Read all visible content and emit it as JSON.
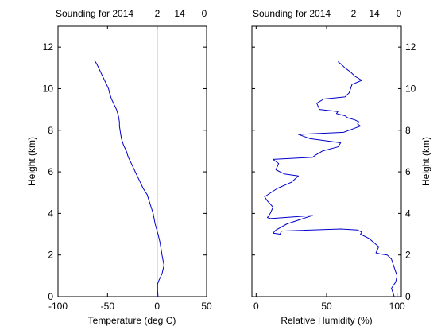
{
  "chart_data": [
    {
      "type": "line",
      "header": [
        "Sounding for 2014",
        "2",
        "14",
        "0"
      ],
      "xlabel": "Temperature (deg C)",
      "ylabel": "Height (km)",
      "xlim": [
        -100,
        50
      ],
      "ylim": [
        0,
        13
      ],
      "xticks": [
        -100,
        -50,
        0,
        50
      ],
      "yticks": [
        0,
        2,
        4,
        6,
        8,
        10,
        12
      ],
      "ytick_side": "left",
      "line_color": "#0000cc",
      "reference_line": {
        "x": 0,
        "color": "#cc0000"
      },
      "series": [
        {
          "x": [
            1,
            0.5,
            0.5,
            2,
            5,
            7,
            5,
            3,
            1,
            -2,
            -4,
            -6,
            -8,
            -10,
            -14,
            -17,
            -20,
            -23,
            -26,
            -29,
            -31,
            -34,
            -36,
            -37,
            -38,
            -38,
            -39,
            -41,
            -44,
            -46,
            -48,
            -49,
            -51,
            -53,
            -55,
            -57,
            -59,
            -61,
            -63
          ],
          "y": [
            0.0,
            0.3,
            0.6,
            0.8,
            1.1,
            1.5,
            2.0,
            2.6,
            3.0,
            3.5,
            4.0,
            4.3,
            4.6,
            4.9,
            5.2,
            5.5,
            5.8,
            6.1,
            6.4,
            6.7,
            7.0,
            7.3,
            7.6,
            7.9,
            8.2,
            8.4,
            8.7,
            9.0,
            9.3,
            9.5,
            9.8,
            10.0,
            10.2,
            10.4,
            10.6,
            10.8,
            11.0,
            11.2,
            11.35
          ]
        }
      ]
    },
    {
      "type": "line",
      "header": [
        "Sounding for 2014",
        "2",
        "14",
        "0"
      ],
      "xlabel": "Relative Humidity (%)",
      "ylabel": "Height (km)",
      "xlim": [
        -3,
        103
      ],
      "ylim": [
        0,
        13
      ],
      "xticks": [
        0,
        50,
        100
      ],
      "yticks": [
        0,
        2,
        4,
        6,
        8,
        10,
        12
      ],
      "ytick_side": "right",
      "line_color": "#0000cc",
      "series": [
        {
          "x": [
            98,
            97,
            96,
            99,
            100,
            98,
            96,
            93,
            88,
            85,
            87,
            80,
            74,
            75,
            72,
            60,
            18,
            17,
            12,
            14,
            22,
            40,
            10,
            8,
            10,
            12,
            8,
            6,
            15,
            25,
            30,
            20,
            14,
            16,
            12,
            40,
            42,
            47,
            58,
            60,
            38,
            30,
            62,
            66,
            70,
            74,
            72,
            73,
            70,
            65,
            63,
            57,
            58,
            45,
            43,
            48,
            63,
            66,
            67,
            68,
            75,
            70,
            67,
            63,
            60,
            58
          ],
          "y": [
            0.0,
            0.2,
            0.4,
            0.7,
            1.0,
            1.4,
            1.8,
            2.0,
            2.05,
            2.1,
            2.4,
            2.8,
            3.0,
            3.1,
            3.2,
            3.25,
            3.15,
            3.0,
            3.05,
            3.2,
            3.5,
            3.9,
            3.75,
            3.8,
            4.0,
            4.3,
            4.6,
            4.8,
            5.2,
            5.5,
            5.8,
            5.9,
            6.1,
            6.4,
            6.6,
            6.7,
            6.8,
            7.0,
            7.2,
            7.4,
            7.6,
            7.8,
            7.9,
            8.0,
            8.1,
            8.2,
            8.3,
            8.4,
            8.5,
            8.6,
            8.7,
            8.8,
            8.9,
            9.0,
            9.3,
            9.5,
            9.6,
            9.8,
            10.0,
            10.2,
            10.4,
            10.6,
            10.8,
            11.0,
            11.2,
            11.3
          ]
        }
      ]
    }
  ]
}
